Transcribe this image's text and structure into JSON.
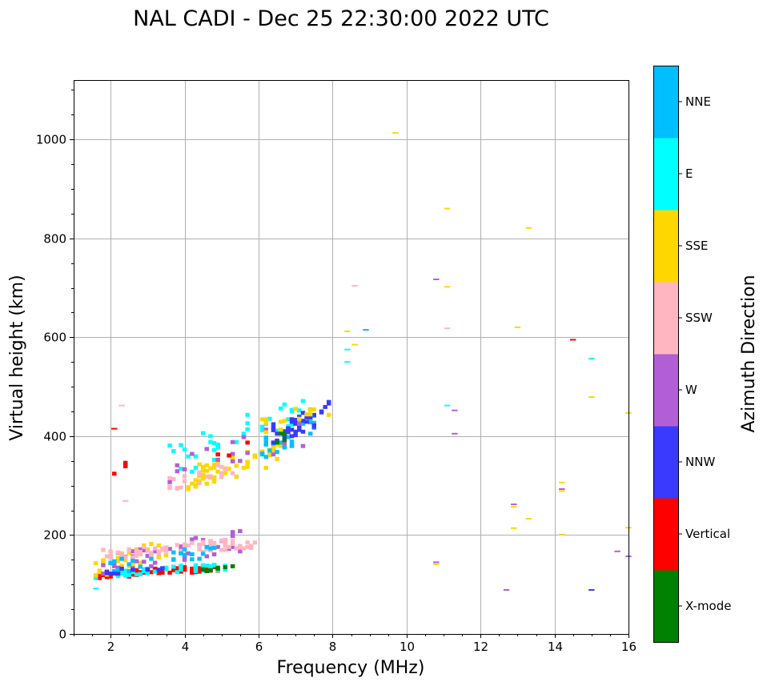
{
  "chart_data": {
    "type": "scatter",
    "title": "NAL CADI - Dec 25 22:30:00 2022 UTC",
    "xlabel": "Frequency (MHz)",
    "ylabel": "Virtual height (km)",
    "xlim": [
      1,
      16
    ],
    "ylim": [
      0,
      1120
    ],
    "xticks": [
      2,
      4,
      6,
      8,
      10,
      12,
      14,
      16
    ],
    "yticks": [
      0,
      200,
      400,
      600,
      800,
      1000
    ],
    "grid": true,
    "colorbar": {
      "label": "Azimuth Direction",
      "categories": [
        {
          "name": "X-mode",
          "color": "#008000"
        },
        {
          "name": "Vertical",
          "color": "#ff0000"
        },
        {
          "name": "NNW",
          "color": "#3a3aff"
        },
        {
          "name": "W",
          "color": "#b25fd6"
        },
        {
          "name": "SSW",
          "color": "#ffb6c1"
        },
        {
          "name": "SSE",
          "color": "#ffd700"
        },
        {
          "name": "E",
          "color": "#00ffff"
        },
        {
          "name": "NNE",
          "color": "#00bfff"
        }
      ]
    },
    "clusters": [
      {
        "dir": "Vertical",
        "f": [
          1.6,
          5.0
        ],
        "h": [
          112,
          140
        ],
        "n": 70,
        "seed": 11
      },
      {
        "dir": "E",
        "f": [
          1.6,
          5.2
        ],
        "h": [
          112,
          145
        ],
        "n": 45,
        "seed": 12
      },
      {
        "dir": "SSE",
        "f": [
          1.6,
          3.5
        ],
        "h": [
          110,
          195
        ],
        "n": 35,
        "seed": 13
      },
      {
        "dir": "W",
        "f": [
          1.8,
          5.5
        ],
        "h": [
          115,
          210
        ],
        "n": 45,
        "seed": 14
      },
      {
        "dir": "SSW",
        "f": [
          1.8,
          5.9
        ],
        "h": [
          150,
          195
        ],
        "n": 70,
        "seed": 15
      },
      {
        "dir": "NNE",
        "f": [
          1.8,
          4.8
        ],
        "h": [
          115,
          185
        ],
        "n": 25,
        "seed": 16
      },
      {
        "dir": "NNW",
        "f": [
          1.6,
          3.5
        ],
        "h": [
          118,
          140
        ],
        "n": 10,
        "seed": 17
      },
      {
        "dir": "X-mode",
        "f": [
          4.3,
          5.3
        ],
        "h": [
          124,
          138
        ],
        "n": 8,
        "seed": 18
      },
      {
        "dir": "SSE",
        "f": [
          4.0,
          6.7
        ],
        "h": [
          290,
          390
        ],
        "n": 60,
        "seed": 21
      },
      {
        "dir": "SSW",
        "f": [
          3.6,
          5.4
        ],
        "h": [
          290,
          350
        ],
        "n": 20,
        "seed": 22
      },
      {
        "dir": "E",
        "f": [
          3.5,
          7.5
        ],
        "h": [
          310,
          490
        ],
        "n": 45,
        "seed": 23
      },
      {
        "dir": "NNE",
        "f": [
          6.0,
          7.6
        ],
        "h": [
          340,
          460
        ],
        "n": 25,
        "seed": 24
      },
      {
        "dir": "NNW",
        "f": [
          6.3,
          8.0
        ],
        "h": [
          380,
          472
        ],
        "n": 40,
        "seed": 25
      },
      {
        "dir": "W",
        "f": [
          3.5,
          7.6
        ],
        "h": [
          300,
          440
        ],
        "n": 18,
        "seed": 26
      },
      {
        "dir": "SSE",
        "f": [
          6.0,
          8.0
        ],
        "h": [
          400,
          475
        ],
        "n": 15,
        "seed": 27
      },
      {
        "dir": "Vertical",
        "f": [
          2.0,
          5.8
        ],
        "h": [
          290,
          420
        ],
        "n": 6,
        "seed": 28
      },
      {
        "dir": "X-mode",
        "f": [
          5.7,
          6.7
        ],
        "h": [
          340,
          420
        ],
        "n": 4,
        "seed": 29
      }
    ],
    "points": [
      {
        "f": 9.7,
        "h": 1013,
        "dir": "SSE"
      },
      {
        "f": 11.1,
        "h": 860,
        "dir": "SSE"
      },
      {
        "f": 13.3,
        "h": 821,
        "dir": "SSE"
      },
      {
        "f": 10.8,
        "h": 717,
        "dir": "W"
      },
      {
        "f": 11.1,
        "h": 702,
        "dir": "SSE"
      },
      {
        "f": 8.6,
        "h": 704,
        "dir": "SSW"
      },
      {
        "f": 8.4,
        "h": 612,
        "dir": "SSE"
      },
      {
        "f": 8.9,
        "h": 615,
        "dir": "NNE"
      },
      {
        "f": 8.6,
        "h": 585,
        "dir": "SSE"
      },
      {
        "f": 8.4,
        "h": 575,
        "dir": "E"
      },
      {
        "f": 8.4,
        "h": 550,
        "dir": "E"
      },
      {
        "f": 11.1,
        "h": 618,
        "dir": "SSW"
      },
      {
        "f": 13.0,
        "h": 620,
        "dir": "SSE"
      },
      {
        "f": 14.5,
        "h": 595,
        "dir": "Vertical"
      },
      {
        "f": 15.0,
        "h": 557,
        "dir": "E"
      },
      {
        "f": 11.1,
        "h": 462,
        "dir": "E"
      },
      {
        "f": 11.3,
        "h": 452,
        "dir": "W"
      },
      {
        "f": 11.3,
        "h": 405,
        "dir": "W"
      },
      {
        "f": 15.0,
        "h": 479,
        "dir": "SSE"
      },
      {
        "f": 16.0,
        "h": 447,
        "dir": "SSE"
      },
      {
        "f": 12.9,
        "h": 262,
        "dir": "W"
      },
      {
        "f": 12.9,
        "h": 257,
        "dir": "SSE"
      },
      {
        "f": 12.9,
        "h": 214,
        "dir": "SSE"
      },
      {
        "f": 13.3,
        "h": 233,
        "dir": "SSE"
      },
      {
        "f": 14.2,
        "h": 306,
        "dir": "SSE"
      },
      {
        "f": 14.2,
        "h": 293,
        "dir": "W"
      },
      {
        "f": 14.2,
        "h": 289,
        "dir": "SSE"
      },
      {
        "f": 14.2,
        "h": 201,
        "dir": "SSE"
      },
      {
        "f": 16.0,
        "h": 215,
        "dir": "SSE"
      },
      {
        "f": 15.7,
        "h": 167,
        "dir": "W"
      },
      {
        "f": 16.0,
        "h": 157,
        "dir": "W"
      },
      {
        "f": 10.8,
        "h": 145,
        "dir": "W"
      },
      {
        "f": 10.8,
        "h": 141,
        "dir": "SSE"
      },
      {
        "f": 12.7,
        "h": 89,
        "dir": "W"
      },
      {
        "f": 15.0,
        "h": 89,
        "dir": "NNW"
      },
      {
        "f": 2.1,
        "h": 415,
        "dir": "Vertical"
      },
      {
        "f": 2.3,
        "h": 462,
        "dir": "SSW"
      },
      {
        "f": 2.4,
        "h": 269,
        "dir": "SSW"
      },
      {
        "f": 1.6,
        "h": 92,
        "dir": "E"
      }
    ]
  }
}
